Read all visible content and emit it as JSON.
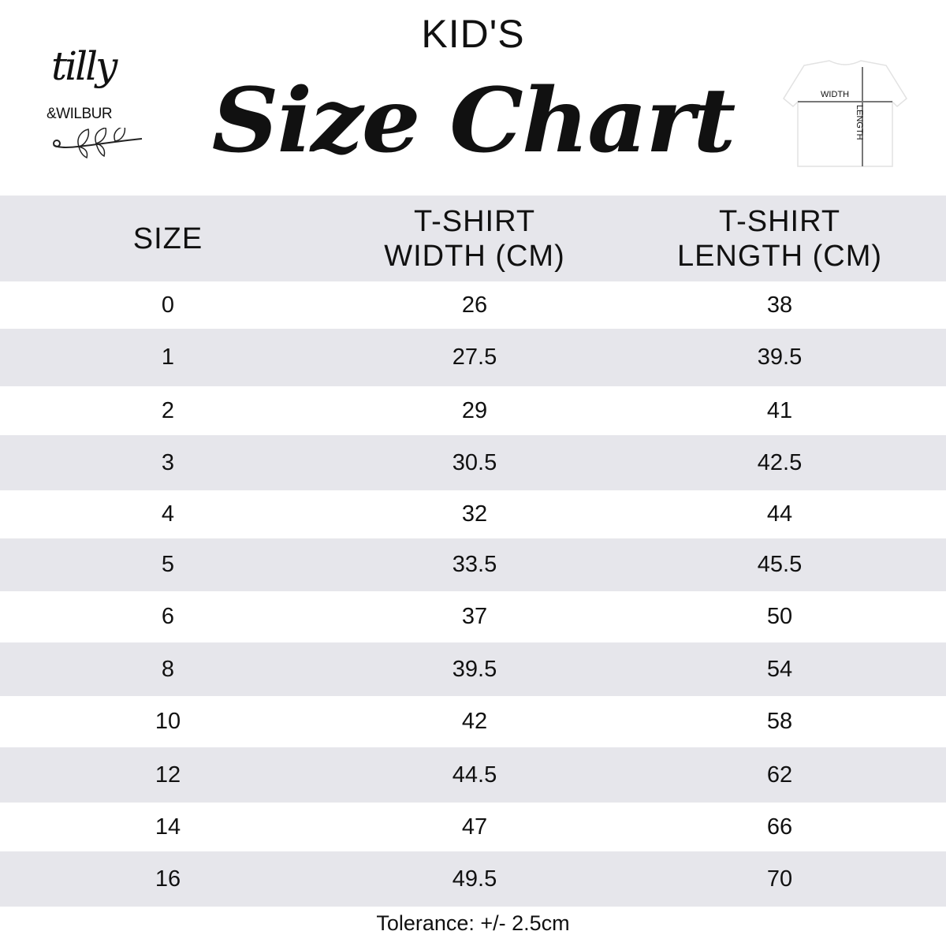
{
  "header": {
    "kicker": "KID'S",
    "title": "Size Chart",
    "logo_text": [
      "tilly",
      "&WILBUR"
    ],
    "diagram_labels": {
      "width": "WIDTH",
      "length": "LENGTH"
    }
  },
  "table": {
    "columns": [
      "SIZE",
      "T-SHIRT WIDTH (CM)",
      "T-SHIRT LENGTH (CM)"
    ],
    "column_lines": [
      [
        "SIZE"
      ],
      [
        "T-SHIRT",
        "WIDTH (CM)"
      ],
      [
        "T-SHIRT",
        "LENGTH (CM)"
      ]
    ],
    "rows": [
      [
        "0",
        "26",
        "38"
      ],
      [
        "1",
        "27.5",
        "39.5"
      ],
      [
        "2",
        "29",
        "41"
      ],
      [
        "3",
        "30.5",
        "42.5"
      ],
      [
        "4",
        "32",
        "44"
      ],
      [
        "5",
        "33.5",
        "45.5"
      ],
      [
        "6",
        "37",
        "50"
      ],
      [
        "8",
        "39.5",
        "54"
      ],
      [
        "10",
        "42",
        "58"
      ],
      [
        "12",
        "44.5",
        "62"
      ],
      [
        "14",
        "47",
        "66"
      ],
      [
        "16",
        "49.5",
        "70"
      ]
    ]
  },
  "footer": {
    "tolerance": "Tolerance: +/- 2.5cm"
  },
  "colors": {
    "band": "#e6e6eb",
    "text": "#111111"
  }
}
